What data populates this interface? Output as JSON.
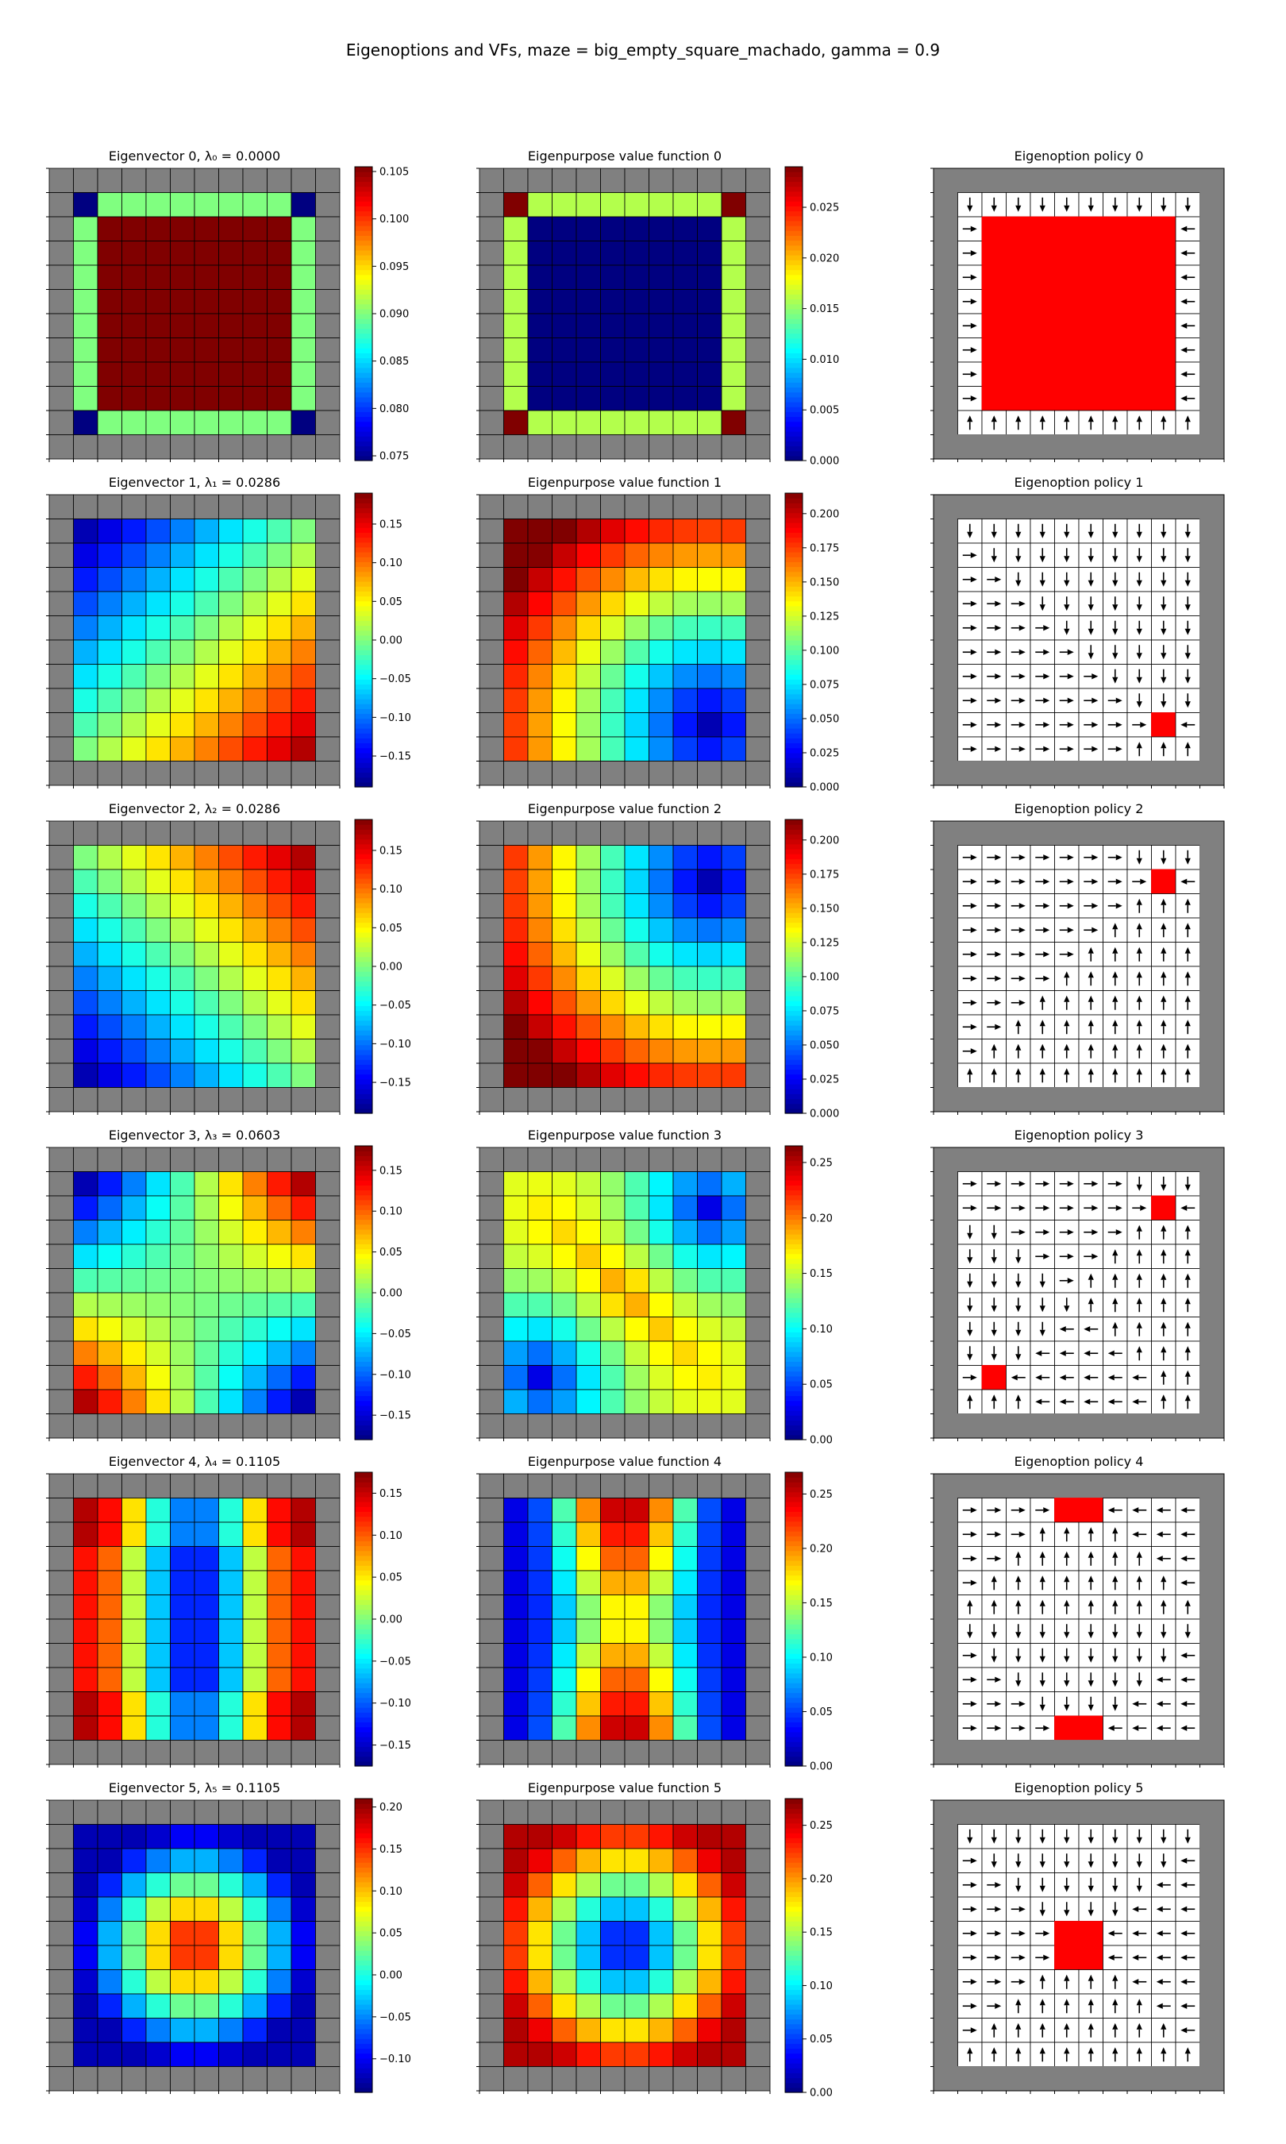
{
  "figure": {
    "title": "Eigenoptions and VFs, maze = big_empty_square_machado, gamma = 0.9"
  },
  "colors": {
    "wall": "#808080",
    "free": "#ffffff",
    "terminal": "#ff0000",
    "grid": "#000000",
    "colormap": "jet"
  },
  "chart_data": {
    "type": "heatmap",
    "grid_size": [
      12,
      12
    ],
    "interior_cells": "rows 1-10, columns 1-10 (row/column 0 and 11 are walls)",
    "rows": [
      {
        "index": 0,
        "eigenvector": {
          "title": "Eigenvector 0,  λ₀ = 0.0000",
          "colorbar": {
            "vmin": 0.0745,
            "vmax": 0.1055,
            "ticks": [
              "0.075",
              "0.080",
              "0.085",
              "0.090",
              "0.095",
              "0.100",
              "0.105"
            ]
          }
        },
        "value_function": {
          "title": "Eigenpurpose value function 0",
          "colorbar": {
            "vmin": 0.0,
            "vmax": 0.029,
            "ticks": [
              "0.000",
              "0.005",
              "0.010",
              "0.015",
              "0.020",
              "0.025"
            ]
          }
        },
        "policy": {
          "title": "Eigenoption policy 0",
          "terminals": "interior 8x8 block"
        }
      },
      {
        "index": 1,
        "eigenvector": {
          "title": "Eigenvector 1,  λ₁ = 0.0286",
          "colorbar": {
            "vmin": -0.19,
            "vmax": 0.19,
            "ticks": [
              "−0.15",
              "−0.10",
              "−0.05",
              "0.00",
              "0.05",
              "0.10",
              "0.15"
            ]
          }
        },
        "value_function": {
          "title": "Eigenpurpose value function 1",
          "colorbar": {
            "vmin": 0.0,
            "vmax": 0.215,
            "ticks": [
              "0.000",
              "0.025",
              "0.050",
              "0.075",
              "0.100",
              "0.125",
              "0.150",
              "0.175",
              "0.200"
            ]
          }
        },
        "policy": {
          "title": "Eigenoption policy 1",
          "terminals": [
            [
              9,
              9
            ]
          ]
        }
      },
      {
        "index": 2,
        "eigenvector": {
          "title": "Eigenvector 2,  λ₂ = 0.0286",
          "colorbar": {
            "vmin": -0.19,
            "vmax": 0.19,
            "ticks": [
              "−0.15",
              "−0.10",
              "−0.05",
              "0.00",
              "0.05",
              "0.10",
              "0.15"
            ]
          }
        },
        "value_function": {
          "title": "Eigenpurpose value function 2",
          "colorbar": {
            "vmin": 0.0,
            "vmax": 0.215,
            "ticks": [
              "0.000",
              "0.025",
              "0.050",
              "0.075",
              "0.100",
              "0.125",
              "0.150",
              "0.175",
              "0.200"
            ]
          }
        },
        "policy": {
          "title": "Eigenoption policy 2",
          "terminals": [
            [
              2,
              9
            ]
          ]
        }
      },
      {
        "index": 3,
        "eigenvector": {
          "title": "Eigenvector 3,  λ₃ = 0.0603",
          "colorbar": {
            "vmin": -0.18,
            "vmax": 0.18,
            "ticks": [
              "−0.15",
              "−0.10",
              "−0.05",
              "0.00",
              "0.05",
              "0.10",
              "0.15"
            ]
          }
        },
        "value_function": {
          "title": "Eigenpurpose value function 3",
          "colorbar": {
            "vmin": 0.0,
            "vmax": 0.265,
            "ticks": [
              "0.00",
              "0.05",
              "0.10",
              "0.15",
              "0.20",
              "0.25"
            ]
          }
        },
        "policy": {
          "title": "Eigenoption policy 3",
          "terminals": [
            [
              2,
              9
            ],
            [
              9,
              2
            ]
          ]
        }
      },
      {
        "index": 4,
        "eigenvector": {
          "title": "Eigenvector 4,  λ₄ = 0.1105",
          "colorbar": {
            "vmin": -0.175,
            "vmax": 0.175,
            "ticks": [
              "−0.15",
              "−0.10",
              "−0.05",
              "0.00",
              "0.05",
              "0.10",
              "0.15"
            ]
          }
        },
        "value_function": {
          "title": "Eigenpurpose value function 4",
          "colorbar": {
            "vmin": 0.0,
            "vmax": 0.27,
            "ticks": [
              "0.00",
              "0.05",
              "0.10",
              "0.15",
              "0.20",
              "0.25"
            ]
          }
        },
        "policy": {
          "title": "Eigenoption policy 4",
          "terminals": [
            [
              1,
              5
            ],
            [
              1,
              6
            ],
            [
              10,
              5
            ],
            [
              10,
              6
            ]
          ]
        }
      },
      {
        "index": 5,
        "eigenvector": {
          "title": "Eigenvector 5,  λ₅ = 0.1105",
          "colorbar": {
            "vmin": -0.14,
            "vmax": 0.21,
            "ticks": [
              "−0.10",
              "−0.05",
              "0.00",
              "0.05",
              "0.10",
              "0.15",
              "0.20"
            ]
          }
        },
        "value_function": {
          "title": "Eigenpurpose value function 5",
          "colorbar": {
            "vmin": 0.0,
            "vmax": 0.275,
            "ticks": [
              "0.00",
              "0.05",
              "0.10",
              "0.15",
              "0.20",
              "0.25"
            ]
          }
        },
        "policy": {
          "title": "Eigenoption policy 5",
          "terminals": [
            [
              5,
              5
            ],
            [
              5,
              6
            ],
            [
              6,
              5
            ],
            [
              6,
              6
            ]
          ]
        }
      }
    ]
  }
}
